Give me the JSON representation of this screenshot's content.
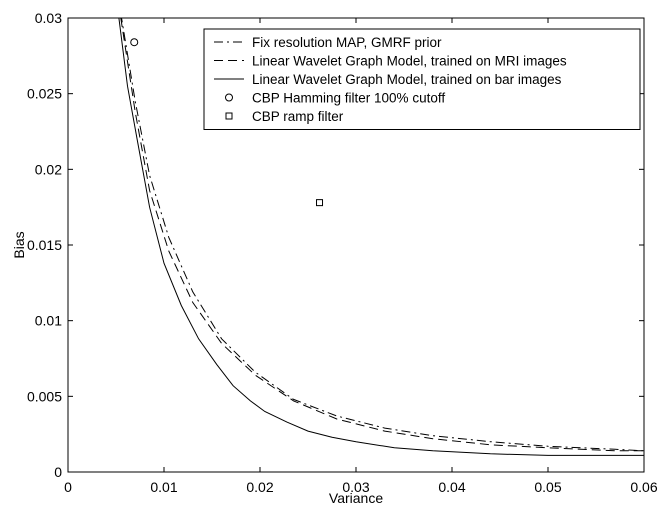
{
  "chart_data": {
    "type": "line",
    "title": "",
    "xlabel": "Variance",
    "ylabel": "Bias",
    "xlim": [
      0,
      0.06
    ],
    "ylim": [
      0,
      0.03
    ],
    "xticks": [
      0,
      0.01,
      0.02,
      0.03,
      0.04,
      0.05,
      0.06
    ],
    "xtick_labels": [
      "0",
      "0.01",
      "0.02",
      "0.03",
      "0.04",
      "0.05",
      "0.06"
    ],
    "yticks": [
      0,
      0.005,
      0.01,
      0.015,
      0.02,
      0.025,
      0.03
    ],
    "ytick_labels": [
      "0",
      "0.005",
      "0.01",
      "0.015",
      "0.02",
      "0.025",
      "0.03"
    ],
    "grid": false,
    "legend_position": "top-right",
    "series": [
      {
        "name": "Fix resolution MAP, GMRF prior",
        "style": "dashdot",
        "x": [
          0.0055,
          0.007,
          0.0085,
          0.0105,
          0.013,
          0.016,
          0.0195,
          0.0235,
          0.028,
          0.033,
          0.038,
          0.044,
          0.05,
          0.057,
          0.06
        ],
        "y": [
          0.0303,
          0.0245,
          0.0196,
          0.0155,
          0.0119,
          0.0088,
          0.0066,
          0.0048,
          0.0037,
          0.0029,
          0.0024,
          0.002,
          0.0017,
          0.0015,
          0.0014
        ]
      },
      {
        "name": "Linear Wavelet Graph Model, trained on MRI images",
        "style": "dashed",
        "x": [
          0.0055,
          0.007,
          0.0085,
          0.0105,
          0.013,
          0.016,
          0.0195,
          0.0235,
          0.028,
          0.033,
          0.038,
          0.044,
          0.05,
          0.057,
          0.06
        ],
        "y": [
          0.03,
          0.0238,
          0.0186,
          0.0146,
          0.0112,
          0.0085,
          0.0064,
          0.0047,
          0.0035,
          0.0027,
          0.0022,
          0.0018,
          0.0016,
          0.0014,
          0.0014
        ]
      },
      {
        "name": "Linear Wavelet Graph Model, trained on bar images",
        "style": "solid",
        "x": [
          0.0053,
          0.0062,
          0.0072,
          0.0085,
          0.01,
          0.0118,
          0.0136,
          0.0155,
          0.0172,
          0.019,
          0.0205,
          0.0228,
          0.025,
          0.0275,
          0.03,
          0.034,
          0.038,
          0.044,
          0.05,
          0.057,
          0.06
        ],
        "y": [
          0.03,
          0.0255,
          0.022,
          0.0175,
          0.0138,
          0.011,
          0.0088,
          0.0071,
          0.0057,
          0.0047,
          0.004,
          0.0033,
          0.0027,
          0.0023,
          0.002,
          0.0016,
          0.0014,
          0.0012,
          0.0011,
          0.0011,
          0.0011
        ]
      }
    ],
    "points": [
      {
        "name": "CBP Hamming filter 100% cutoff",
        "marker": "circle",
        "x": 0.0069,
        "y": 0.0284
      },
      {
        "name": "CBP ramp filter",
        "marker": "square",
        "x": 0.0262,
        "y": 0.0178
      }
    ]
  }
}
